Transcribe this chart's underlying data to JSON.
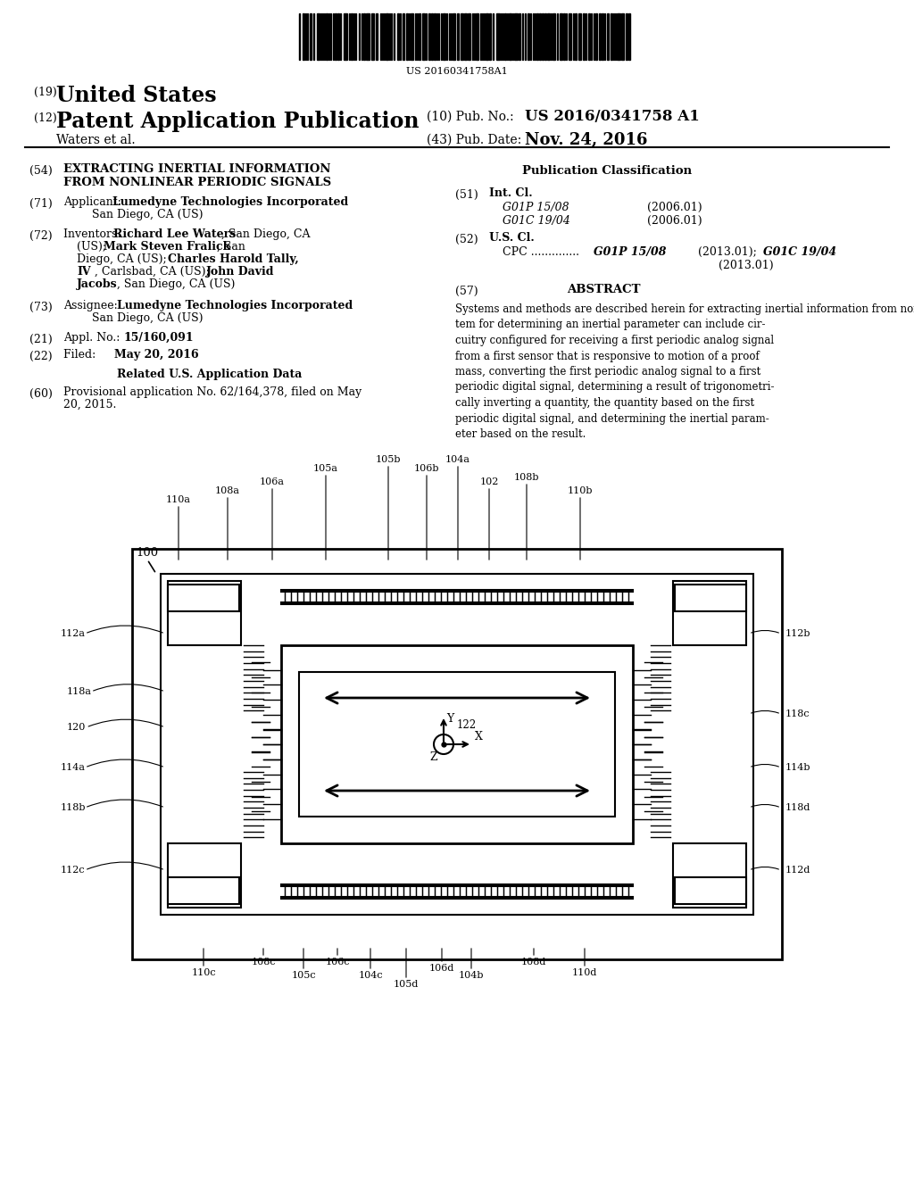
{
  "background_color": "#ffffff",
  "barcode_text": "US 20160341758A1",
  "patent_number_label": "(19)",
  "patent_title_us": "United States",
  "patent_number_label2": "(12)",
  "patent_title_pub": "Patent Application Publication",
  "pub_no_label": "(10) Pub. No.:",
  "pub_no": "US 2016/0341758 A1",
  "inventor_label": "Waters et al.",
  "pub_date_label": "(43) Pub. Date:",
  "pub_date": "Nov. 24, 2016",
  "section54_title_line1": "EXTRACTING INERTIAL INFORMATION",
  "section54_title_line2": "FROM NONLINEAR PERIODIC SIGNALS",
  "pub_class_title": "Publication Classification",
  "section51_intcl": "Int. Cl.",
  "section51_class1": "G01P 15/08",
  "section51_date1": "(2006.01)",
  "section51_class2": "G01C 19/04",
  "section51_date2": "(2006.01)",
  "section52_uscl": "U.S. Cl.",
  "section57_title": "ABSTRACT",
  "abstract_text": "Systems and methods are described herein for extracting inertial information from nonlinear periodic signals. A sys-\ntem for determining an inertial parameter can include cir-\ncuitry configured for receiving a first periodic analog signal\nfrom a first sensor that is responsive to motion of a proof\nmass, converting the first periodic analog signal to a first\nperiodic digital signal, determining a result of trigonometri-\ncally inverting a quantity, the quantity based on the first\nperiodic digital signal, and determining the inertial param-\neter based on the result.",
  "fig_label": "100",
  "top_labels": [
    [
      "110a",
      200,
      555
    ],
    [
      "108a",
      255,
      545
    ],
    [
      "106a",
      305,
      535
    ],
    [
      "105a",
      365,
      520
    ],
    [
      "105b",
      435,
      510
    ],
    [
      "106b",
      478,
      520
    ],
    [
      "104a",
      513,
      510
    ],
    [
      "102",
      548,
      535
    ],
    [
      "108b",
      590,
      530
    ],
    [
      "110b",
      650,
      545
    ]
  ],
  "bottom_labels": [
    [
      "110c",
      228,
      1095
    ],
    [
      "108c",
      295,
      1083
    ],
    [
      "105c",
      340,
      1098
    ],
    [
      "106c",
      378,
      1083
    ],
    [
      "104c",
      415,
      1098
    ],
    [
      "105d",
      455,
      1108
    ],
    [
      "106d",
      495,
      1090
    ],
    [
      "104b",
      528,
      1098
    ],
    [
      "108d",
      598,
      1083
    ],
    [
      "110d",
      655,
      1095
    ]
  ],
  "left_labels": [
    [
      "112a",
      68,
      710
    ],
    [
      "118a",
      75,
      775
    ],
    [
      "120",
      75,
      815
    ],
    [
      "114a",
      68,
      860
    ],
    [
      "118b",
      68,
      905
    ],
    [
      "112c",
      68,
      975
    ]
  ],
  "right_labels": [
    [
      "112b",
      880,
      710
    ],
    [
      "118c",
      880,
      800
    ],
    [
      "114b",
      880,
      860
    ],
    [
      "118d",
      880,
      905
    ],
    [
      "112d",
      880,
      975
    ]
  ],
  "coord_label": "122"
}
